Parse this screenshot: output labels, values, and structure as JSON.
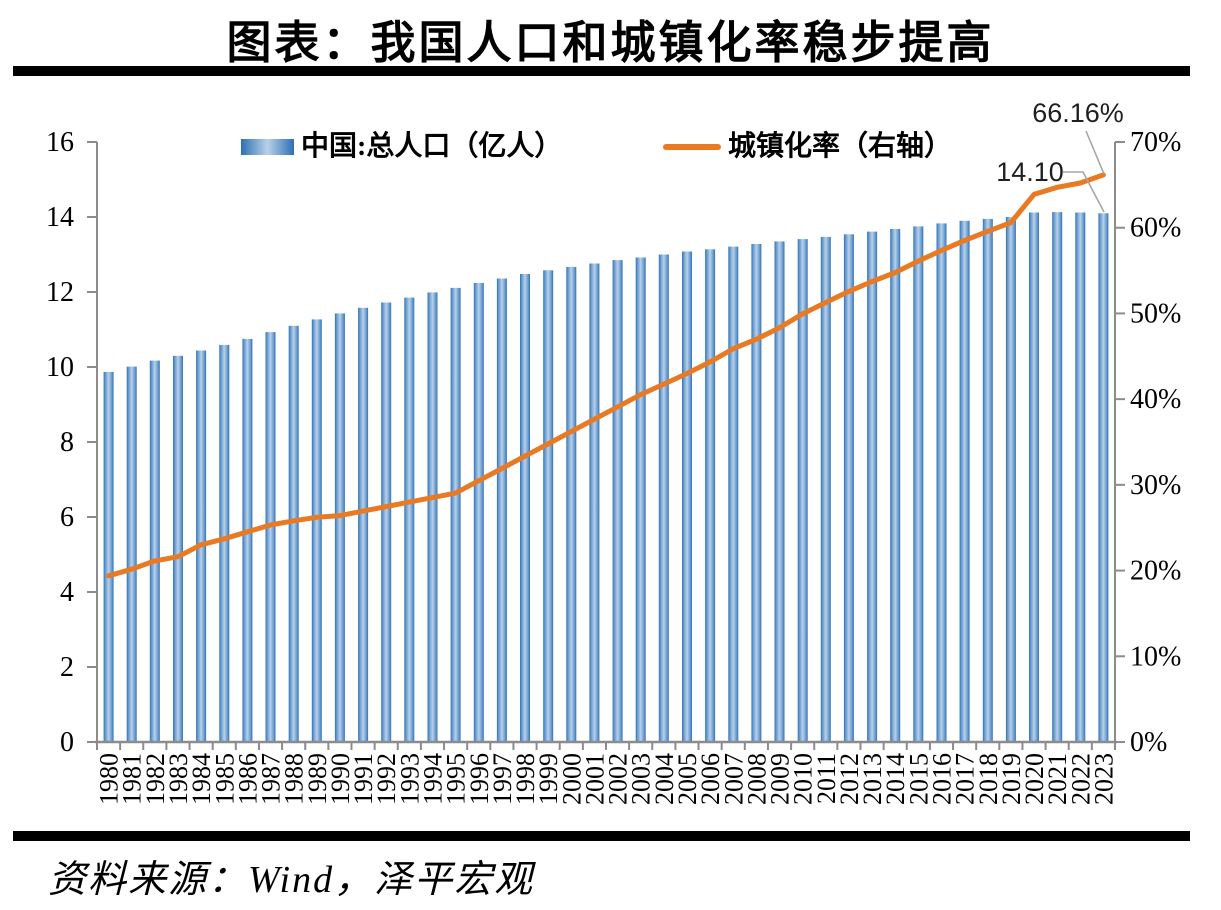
{
  "page": {
    "title": "图表：我国人口和城镇化率稳步提高",
    "source": "资料来源：Wind，泽平宏观"
  },
  "legend": {
    "bar_label": "中国:总人口（亿人）",
    "line_label": "城镇化率（右轴）"
  },
  "colors": {
    "bar_dark": "#2c70b4",
    "bar_mid": "#5d93cb",
    "bar_light": "#b9d0e9",
    "line": "#e97a24",
    "axis": "#8c8c8c",
    "leader": "#a6a6a6",
    "text": "#000000",
    "annotation_text": "#1f1f1f"
  },
  "chart_data": {
    "type": "bar",
    "title": "图表：我国人口和城镇化率稳步提高",
    "grid": false,
    "legend_position": "top",
    "categories": [
      "1980",
      "1981",
      "1982",
      "1983",
      "1984",
      "1985",
      "1986",
      "1987",
      "1988",
      "1989",
      "1990",
      "1991",
      "1992",
      "1993",
      "1994",
      "1995",
      "1996",
      "1997",
      "1998",
      "1999",
      "2000",
      "2001",
      "2002",
      "2003",
      "2004",
      "2005",
      "2006",
      "2007",
      "2008",
      "2009",
      "2010",
      "2011",
      "2012",
      "2013",
      "2014",
      "2015",
      "2016",
      "2017",
      "2018",
      "2019",
      "2020",
      "2021",
      "2022",
      "2023"
    ],
    "series": [
      {
        "name": "中国:总人口（亿人）",
        "type": "bar",
        "axis": "left",
        "values": [
          9.87,
          10.01,
          10.17,
          10.3,
          10.44,
          10.59,
          10.75,
          10.93,
          11.1,
          11.27,
          11.43,
          11.58,
          11.72,
          11.85,
          11.99,
          12.11,
          12.24,
          12.36,
          12.48,
          12.58,
          12.67,
          12.76,
          12.85,
          12.92,
          13.0,
          13.08,
          13.14,
          13.21,
          13.28,
          13.35,
          13.41,
          13.47,
          13.54,
          13.61,
          13.68,
          13.75,
          13.83,
          13.9,
          13.95,
          14.0,
          14.12,
          14.13,
          14.12,
          14.1
        ]
      },
      {
        "name": "城镇化率（右轴）",
        "type": "line",
        "axis": "right",
        "values": [
          19.39,
          20.16,
          21.13,
          21.62,
          23.01,
          23.71,
          24.52,
          25.32,
          25.81,
          26.21,
          26.41,
          26.94,
          27.46,
          27.99,
          28.51,
          29.04,
          30.48,
          31.91,
          33.35,
          34.78,
          36.22,
          37.66,
          39.09,
          40.53,
          41.76,
          42.99,
          44.34,
          45.89,
          46.99,
          48.34,
          49.95,
          51.27,
          52.57,
          53.73,
          54.77,
          56.1,
          57.35,
          58.52,
          59.58,
          60.6,
          63.89,
          64.72,
          65.22,
          66.16
        ]
      }
    ],
    "left_axis": {
      "min": 0,
      "max": 16,
      "step": 2,
      "suffix": ""
    },
    "right_axis": {
      "min": 0,
      "max": 70,
      "step": 10,
      "suffix": "%"
    },
    "annotations": [
      {
        "text": "66.16%",
        "target": "line-2023"
      },
      {
        "text": "14.10",
        "target": "bar-2023"
      }
    ]
  }
}
